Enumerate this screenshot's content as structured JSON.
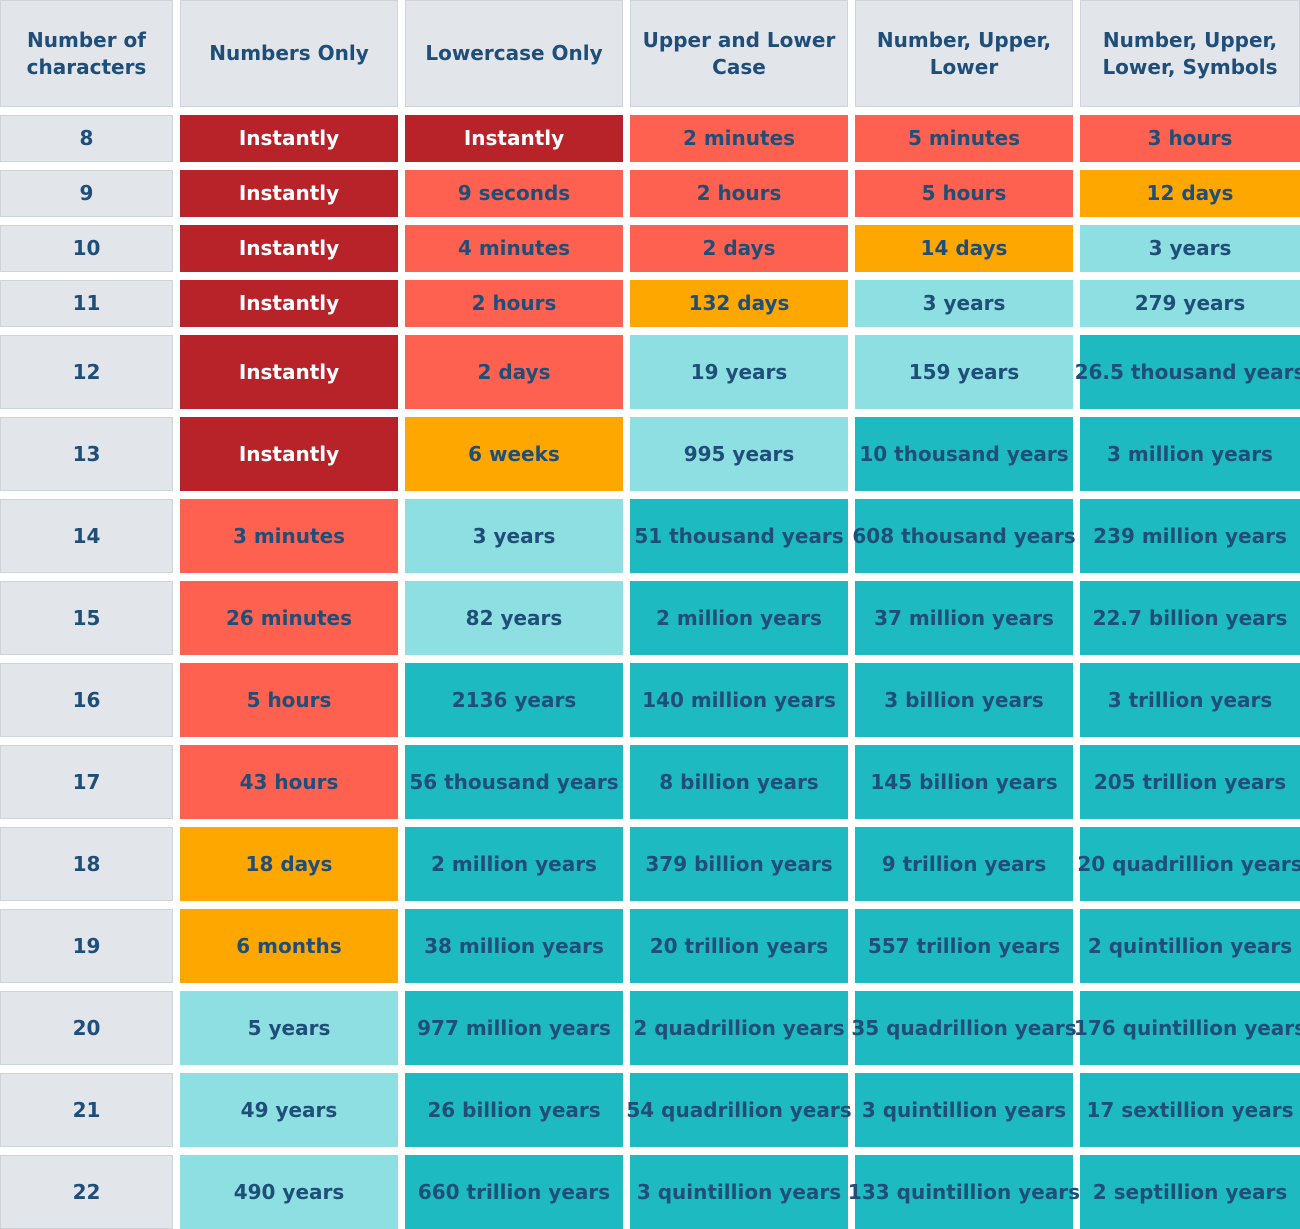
{
  "chart_data": {
    "type": "table",
    "title": "",
    "columns": [
      "Number of characters",
      "Numbers Only",
      "Lowercase Only",
      "Upper and Lower Case",
      "Number, Upper, Lower",
      "Number, Upper, Lower, Symbols"
    ],
    "rows": [
      {
        "chars": "8",
        "cells": [
          "Instantly",
          "Instantly",
          "2 minutes",
          "5 minutes",
          "3 hours"
        ],
        "levels": [
          0,
          0,
          1,
          1,
          1
        ]
      },
      {
        "chars": "9",
        "cells": [
          "Instantly",
          "9 seconds",
          "2 hours",
          "5 hours",
          "12 days"
        ],
        "levels": [
          0,
          1,
          1,
          1,
          2
        ]
      },
      {
        "chars": "10",
        "cells": [
          "Instantly",
          "4 minutes",
          "2 days",
          "14 days",
          "3 years"
        ],
        "levels": [
          0,
          1,
          1,
          2,
          3
        ]
      },
      {
        "chars": "11",
        "cells": [
          "Instantly",
          "2 hours",
          "132 days",
          "3 years",
          "279 years"
        ],
        "levels": [
          0,
          1,
          2,
          3,
          3
        ]
      },
      {
        "chars": "12",
        "cells": [
          "Instantly",
          "2 days",
          "19 years",
          "159 years",
          "26.5 thousand years"
        ],
        "levels": [
          0,
          1,
          3,
          3,
          4
        ]
      },
      {
        "chars": "13",
        "cells": [
          "Instantly",
          "6 weeks",
          "995 years",
          "10 thousand years",
          "3 million years"
        ],
        "levels": [
          0,
          2,
          3,
          4,
          4
        ]
      },
      {
        "chars": "14",
        "cells": [
          "3 minutes",
          "3 years",
          "51 thousand years",
          "608 thousand years",
          "239 million years"
        ],
        "levels": [
          1,
          3,
          4,
          4,
          4
        ]
      },
      {
        "chars": "15",
        "cells": [
          "26 minutes",
          "82 years",
          "2 million years",
          "37 million years",
          "22.7 billion years"
        ],
        "levels": [
          1,
          3,
          4,
          4,
          4
        ]
      },
      {
        "chars": "16",
        "cells": [
          "5 hours",
          "2136 years",
          "140 million years",
          "3 billion years",
          "3 trillion years"
        ],
        "levels": [
          1,
          4,
          4,
          4,
          4
        ]
      },
      {
        "chars": "17",
        "cells": [
          "43 hours",
          "56 thousand years",
          "8 billion years",
          "145  billion years",
          "205 trillion years"
        ],
        "levels": [
          1,
          4,
          4,
          4,
          4
        ]
      },
      {
        "chars": "18",
        "cells": [
          "18 days",
          "2 million years",
          "379 billion years",
          "9 trillion years",
          "20 quadrillion years"
        ],
        "levels": [
          2,
          4,
          4,
          4,
          4
        ]
      },
      {
        "chars": "19",
        "cells": [
          "6 months",
          "38 million years",
          "20 trillion years",
          "557 trillion years",
          "2 quintillion years"
        ],
        "levels": [
          2,
          4,
          4,
          4,
          4
        ]
      },
      {
        "chars": "20",
        "cells": [
          "5 years",
          "977 million years",
          "2 quadrillion years",
          "35 quadrillion years",
          "176 quintillion years"
        ],
        "levels": [
          3,
          4,
          4,
          4,
          4
        ]
      },
      {
        "chars": "21",
        "cells": [
          "49 years",
          "26 billion years",
          "54 quadrillion years",
          "3 quintillion years",
          "17 sextillion years"
        ],
        "levels": [
          3,
          4,
          4,
          4,
          4
        ]
      },
      {
        "chars": "22",
        "cells": [
          "490 years",
          "660 trillion years",
          "3 quintillion years",
          "133 quintillion years",
          "2 septillion years"
        ],
        "levels": [
          3,
          4,
          4,
          4,
          4
        ]
      }
    ],
    "level_colors": [
      "#b82229",
      "#fe6150",
      "#fda700",
      "#8edfe2",
      "#1dbac1"
    ],
    "header_color": "#e2e5ea"
  }
}
